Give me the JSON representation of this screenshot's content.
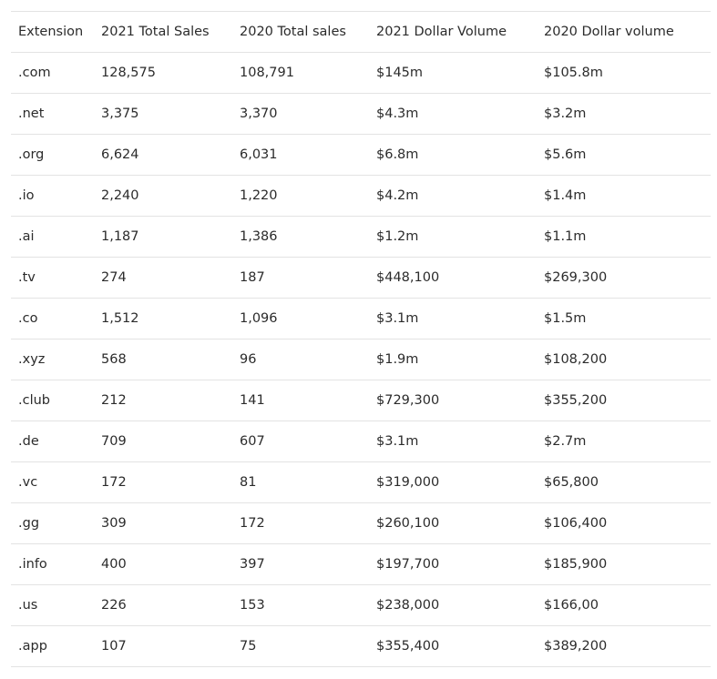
{
  "table": {
    "headers": [
      "Extension",
      "2021 Total Sales",
      "2020 Total sales",
      "2021 Dollar Volume",
      "2020 Dollar volume"
    ],
    "rows": [
      [
        ".com",
        "128,575",
        "108,791",
        "$145m",
        "$105.8m"
      ],
      [
        ".net",
        "3,375",
        "3,370",
        "$4.3m",
        "$3.2m"
      ],
      [
        ".org",
        "6,624",
        "6,031",
        "$6.8m",
        "$5.6m"
      ],
      [
        ".io",
        "2,240",
        "1,220",
        "$4.2m",
        "$1.4m"
      ],
      [
        ".ai",
        "1,187",
        "1,386",
        "$1.2m",
        "$1.1m"
      ],
      [
        ".tv",
        "274",
        "187",
        "$448,100",
        "$269,300"
      ],
      [
        ".co",
        "1,512",
        "1,096",
        "$3.1m",
        "$1.5m"
      ],
      [
        ".xyz",
        "568",
        "96",
        "$1.9m",
        "$108,200"
      ],
      [
        ".club",
        "212",
        "141",
        "$729,300",
        "$355,200"
      ],
      [
        ".de",
        "709",
        "607",
        "$3.1m",
        "$2.7m"
      ],
      [
        ".vc",
        "172",
        "81",
        "$319,000",
        "$65,800"
      ],
      [
        ".gg",
        "309",
        "172",
        "$260,100",
        "$106,400"
      ],
      [
        ".info",
        "400",
        "397",
        "$197,700",
        "$185,900"
      ],
      [
        ".us",
        "226",
        "153",
        "$238,000",
        "$166,00"
      ],
      [
        ".app",
        "107",
        "75",
        "$355,400",
        "$389,200"
      ]
    ]
  }
}
